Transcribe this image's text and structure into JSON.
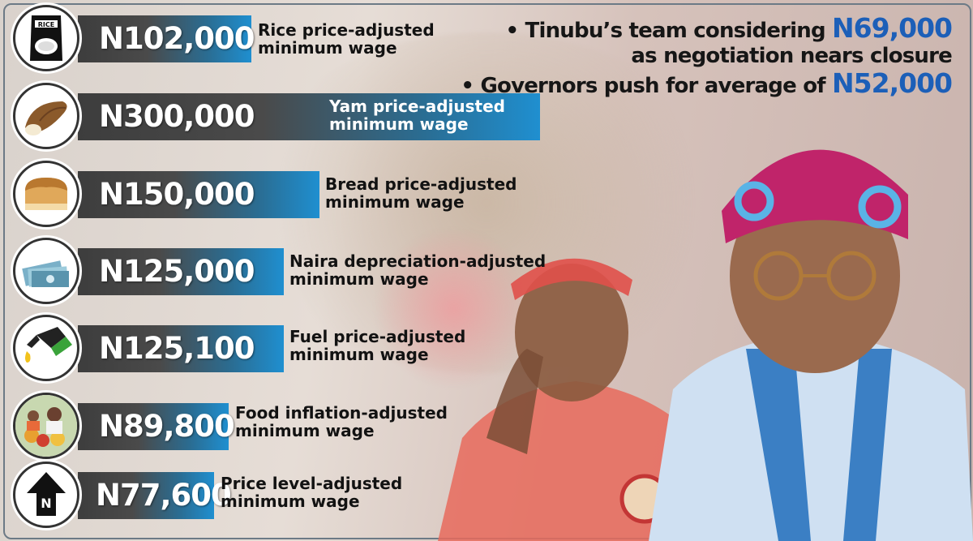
{
  "rows": [
    {
      "icon": "rice-bag-icon",
      "value": "N102,000",
      "label_line1": "Rice price-adjusted",
      "label_line2": "minimum wage"
    },
    {
      "icon": "yam-icon",
      "value": "N300,000",
      "label_line1": "Yam price-adjusted",
      "label_line2": "minimum wage"
    },
    {
      "icon": "bread-icon",
      "value": "N150,000",
      "label_line1": "Bread price-adjusted",
      "label_line2": "minimum wage"
    },
    {
      "icon": "naira-notes-icon",
      "value": "N125,000",
      "label_line1": "Naira depreciation-adjusted",
      "label_line2": "minimum wage"
    },
    {
      "icon": "fuel-nozzle-icon",
      "value": "N125,100",
      "label_line1": "Fuel price-adjusted",
      "label_line2": "minimum wage"
    },
    {
      "icon": "food-market-icon",
      "value": "N89,800",
      "label_line1": "Food inflation-adjusted",
      "label_line2": "minimum wage"
    },
    {
      "icon": "price-level-arrow-icon",
      "value": "N77,600",
      "label_line1": "Price level-adjusted",
      "label_line2": "minimum wage"
    }
  ],
  "notes": {
    "line1_prefix": "• Tinubu’s team considering ",
    "line1_amount": "N69,000",
    "line2": "as negotiation nears closure",
    "line3_prefix": "• Governors push for average of ",
    "line3_amount": "N52,000"
  },
  "colors": {
    "bar_dark": "#3d3d3d",
    "bar_blue": "#1f8fd0",
    "highlight": "#1c5fb8"
  }
}
